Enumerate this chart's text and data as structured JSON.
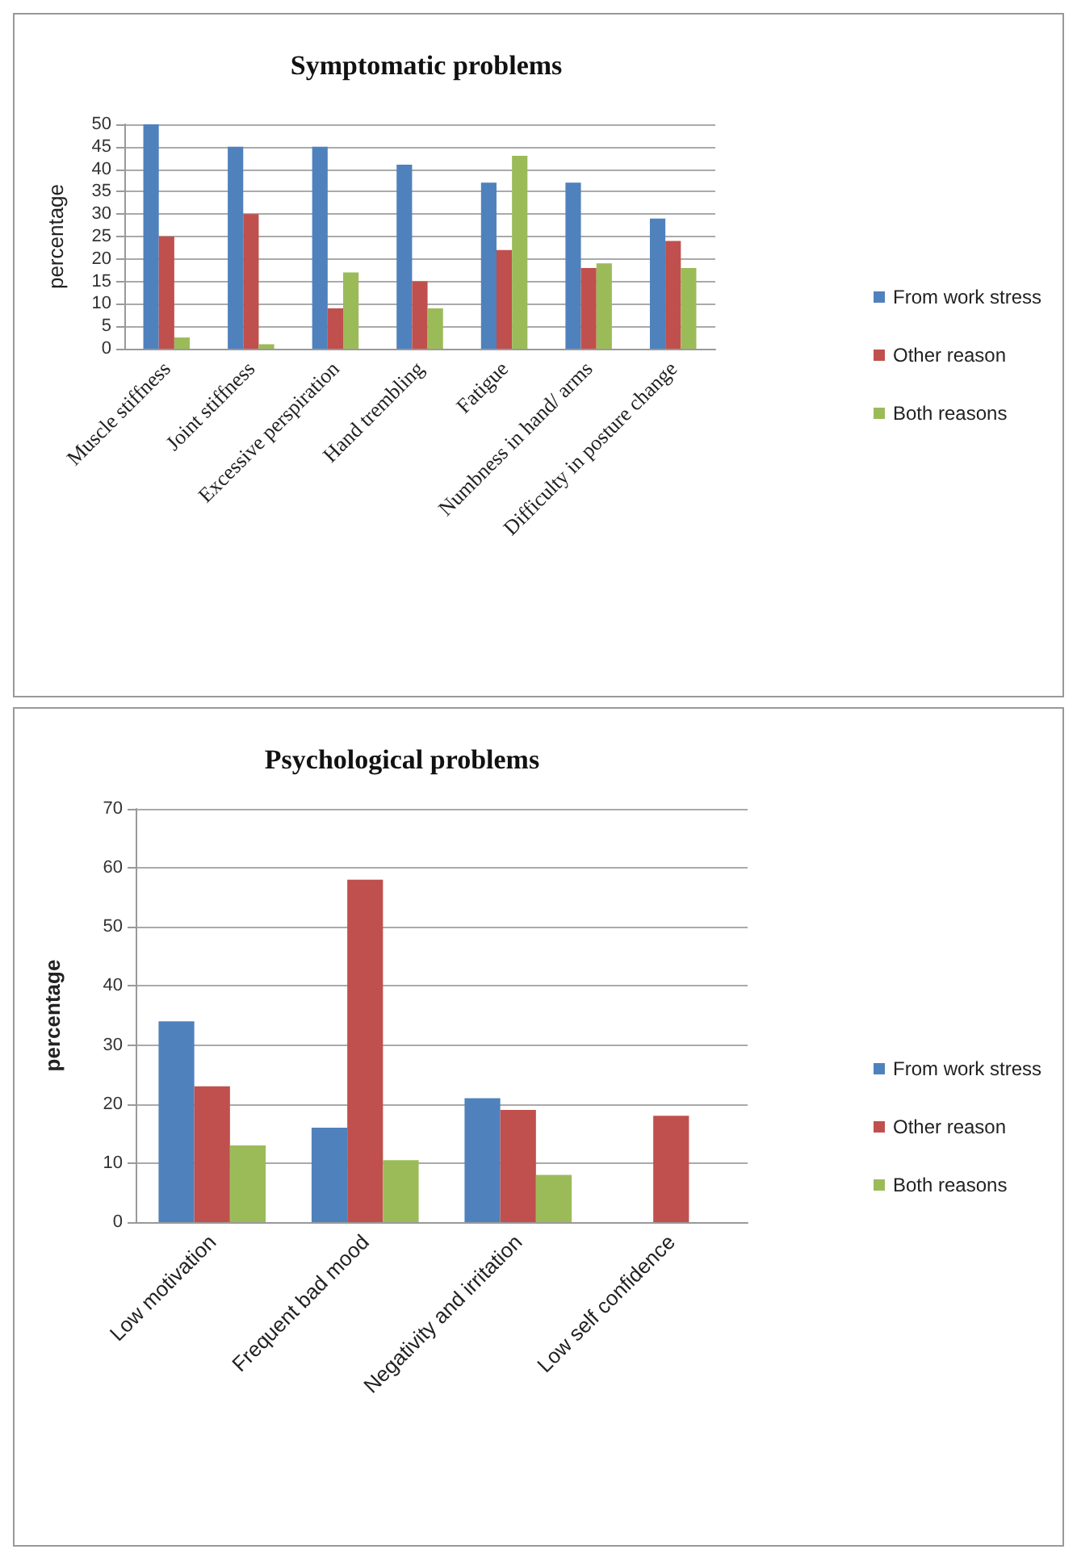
{
  "chart_data": [
    {
      "type": "bar",
      "title": "Symptomatic problems",
      "ylabel": "percentage",
      "categories": [
        "Muscle stiffness",
        "Joint stiffness",
        "Excessive perspiration",
        "Hand trembling",
        "Fatigue",
        "Numbness in hand/ arms",
        "Difficulty in posture change"
      ],
      "series": [
        {
          "name": "From work stress",
          "color": "#4f81bd",
          "values": [
            50,
            45,
            45,
            41,
            37,
            37,
            29
          ]
        },
        {
          "name": "Other reason",
          "color": "#c0504d",
          "values": [
            25,
            30,
            9,
            15,
            22,
            18,
            24
          ]
        },
        {
          "name": "Both reasons",
          "color": "#9bbb59",
          "values": [
            2.5,
            1,
            17,
            9,
            43,
            19,
            18
          ]
        }
      ],
      "ylim": [
        0,
        50
      ],
      "yticks": [
        0,
        5,
        10,
        15,
        20,
        25,
        30,
        35,
        40,
        45,
        50
      ],
      "grid": "y",
      "legend": "right"
    },
    {
      "type": "bar",
      "title": "Psychological problems",
      "ylabel": "percentage",
      "categories": [
        "Low motivation",
        "Frequent bad mood",
        "Negativity and irritation",
        "Low self confidence"
      ],
      "series": [
        {
          "name": "From work stress",
          "color": "#4f81bd",
          "values": [
            34,
            16,
            21,
            null
          ]
        },
        {
          "name": "Other reason",
          "color": "#c0504d",
          "values": [
            23,
            58,
            19,
            18
          ]
        },
        {
          "name": "Both reasons",
          "color": "#9bbb59",
          "values": [
            13,
            10.5,
            8,
            null
          ]
        }
      ],
      "ylim": [
        0,
        70
      ],
      "yticks": [
        0,
        10,
        20,
        30,
        40,
        50,
        60,
        70
      ],
      "grid": "y",
      "legend": "right"
    }
  ]
}
